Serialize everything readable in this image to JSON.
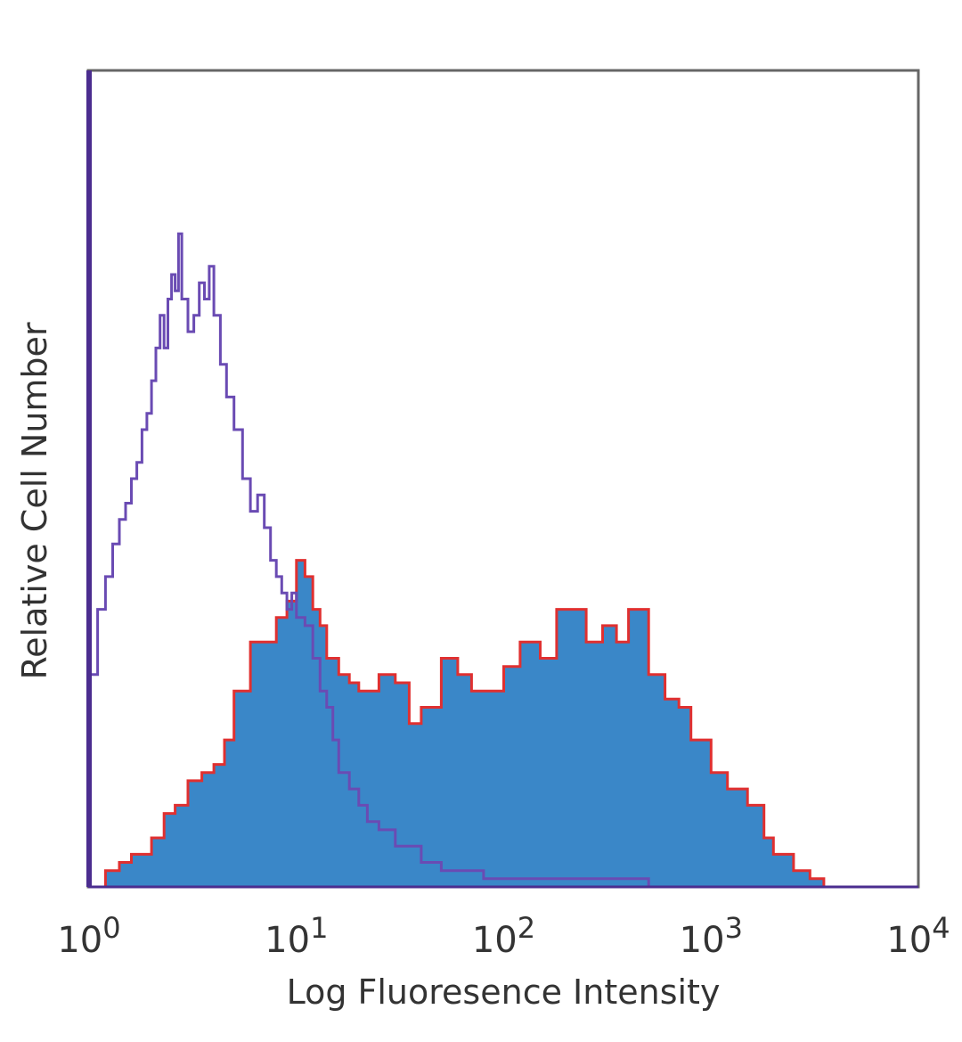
{
  "chart_data": {
    "type": "histogram",
    "xlabel": "Log Fluoresence Intensity",
    "ylabel": "Relative Cell Number",
    "x_scale": "log10",
    "xlim": [
      1,
      10000
    ],
    "ylim": [
      0,
      100
    ],
    "y_ticks_shown": false,
    "grid": false,
    "x_ticks": [
      {
        "base": "10",
        "exp": "0",
        "value": 1
      },
      {
        "base": "10",
        "exp": "1",
        "value": 10
      },
      {
        "base": "10",
        "exp": "2",
        "value": 100
      },
      {
        "base": "10",
        "exp": "3",
        "value": 1000
      },
      {
        "base": "10",
        "exp": "4",
        "value": 10000
      }
    ],
    "series": [
      {
        "style": "filled",
        "fill_color": "#3a87c8",
        "edge_color": "#e03030",
        "x": [
          1.0,
          1.2,
          1.4,
          1.6,
          1.8,
          2.0,
          2.3,
          2.6,
          3.0,
          3.5,
          4.0,
          4.5,
          5.0,
          6.0,
          7.0,
          8.0,
          9.0,
          10.0,
          11.0,
          12.0,
          13.0,
          14.0,
          16.0,
          18.0,
          20.0,
          25.0,
          30.0,
          35.0,
          40.0,
          50.0,
          60.0,
          70.0,
          80.0,
          100.0,
          120.0,
          150.0,
          180.0,
          200.0,
          250.0,
          300.0,
          350.0,
          400.0,
          500.0,
          600.0,
          700.0,
          800.0,
          1000.0,
          1200.0,
          1500.0,
          1800.0,
          2000.0,
          2500.0,
          3000.0,
          3500.0,
          4000.0
        ],
        "values": [
          0,
          2,
          3,
          4,
          4,
          6,
          9,
          10,
          13,
          14,
          15,
          18,
          24,
          30,
          30,
          33,
          35,
          40,
          38,
          34,
          32,
          28,
          26,
          25,
          24,
          26,
          25,
          20,
          22,
          28,
          26,
          24,
          24,
          27,
          30,
          28,
          34,
          34,
          30,
          32,
          30,
          34,
          26,
          23,
          22,
          18,
          14,
          12,
          10,
          6,
          4,
          2,
          1,
          0,
          0
        ]
      },
      {
        "style": "outline",
        "edge_color": "#6a4bb3",
        "x": [
          1.0,
          1.1,
          1.2,
          1.3,
          1.4,
          1.5,
          1.6,
          1.7,
          1.8,
          1.9,
          2.0,
          2.1,
          2.2,
          2.3,
          2.4,
          2.5,
          2.6,
          2.7,
          2.8,
          3.0,
          3.2,
          3.4,
          3.6,
          3.8,
          4.0,
          4.3,
          4.6,
          5.0,
          5.5,
          6.0,
          6.5,
          7.0,
          7.5,
          8.0,
          8.5,
          9.0,
          9.5,
          10.0,
          11.0,
          12.0,
          13.0,
          14.0,
          15.0,
          16.0,
          18.0,
          20.0,
          22.0,
          25.0,
          30.0,
          35.0,
          40.0,
          50.0,
          60.0,
          80.0,
          100.0,
          150.0,
          200.0,
          300.0,
          500.0,
          1000.0,
          10000.0
        ],
        "values": [
          26,
          34,
          38,
          42,
          45,
          47,
          50,
          52,
          56,
          58,
          62,
          66,
          70,
          66,
          72,
          75,
          73,
          80,
          72,
          68,
          70,
          74,
          72,
          76,
          70,
          64,
          60,
          56,
          50,
          46,
          48,
          44,
          40,
          38,
          36,
          34,
          36,
          33,
          32,
          28,
          24,
          22,
          18,
          14,
          12,
          10,
          8,
          7,
          5,
          5,
          3,
          2,
          2,
          1,
          1,
          1,
          1,
          1,
          0,
          0,
          0
        ]
      }
    ]
  }
}
